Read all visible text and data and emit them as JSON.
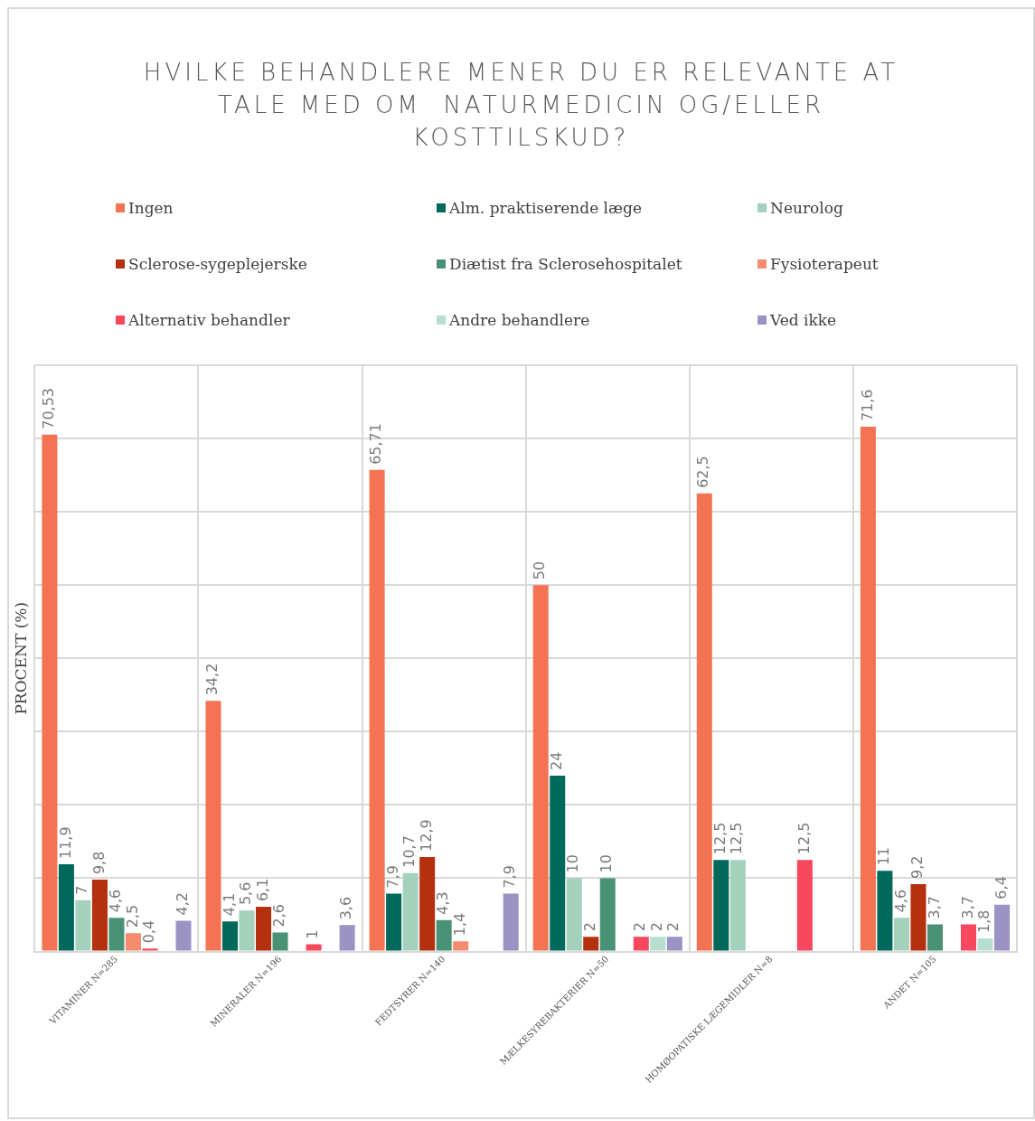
{
  "chart_data": {
    "type": "bar",
    "title": "HVILKE BEHANDLERE MENER DU ER RELEVANTE AT TALE MED OM  NATURMEDICIN OG/ELLER KOSTTILSKUD?",
    "ylabel": "PROCENT (%)",
    "categories": [
      "VITAMINER N=285",
      "MINERALER N=196",
      "FEDTSYRER N=140",
      "MÆLKESYREBAKTERIER N=50",
      "HOMØOPATISKE LÆGEMIDLER N=8",
      "ANDET N=105"
    ],
    "series": [
      {
        "name": "Ingen",
        "color": "#f47352",
        "values": [
          70.53,
          34.2,
          65.71,
          50,
          62.5,
          71.6
        ],
        "value_labels": [
          "70,53",
          "34,2",
          "65,71",
          "50",
          "62,5",
          "71,6"
        ]
      },
      {
        "name": "Alm. praktiserende læge",
        "color": "#00695c",
        "values": [
          11.9,
          4.1,
          7.9,
          24,
          12.5,
          11
        ],
        "value_labels": [
          "11,9",
          "4,1",
          "7,9",
          "24",
          "12,5",
          "11"
        ]
      },
      {
        "name": "Neurolog",
        "color": "#a3d1bc",
        "values": [
          7,
          5.6,
          10.7,
          10,
          12.5,
          4.6
        ],
        "value_labels": [
          "7",
          "5,6",
          "10,7",
          "10",
          "12,5",
          "4,6"
        ]
      },
      {
        "name": "Sclerose-sygeplejerske",
        "color": "#b5300f",
        "values": [
          9.8,
          6.1,
          12.9,
          2,
          null,
          9.2
        ],
        "value_labels": [
          "9,8",
          "6,1",
          "12,9",
          "2",
          null,
          "9,2"
        ]
      },
      {
        "name": "Diætist fra Sclerosehospitalet",
        "color": "#4a9275",
        "values": [
          4.6,
          2.6,
          4.3,
          10,
          null,
          3.7
        ],
        "value_labels": [
          "4,6",
          "2,6",
          "4,3",
          "10",
          null,
          "3,7"
        ]
      },
      {
        "name": "Fysioterapeut",
        "color": "#f68b6d",
        "values": [
          2.5,
          null,
          1.4,
          null,
          null,
          null
        ],
        "value_labels": [
          "2,5",
          null,
          "1,4",
          null,
          null,
          null
        ]
      },
      {
        "name": "Alternativ behandler",
        "color": "#f9475e",
        "values": [
          0.4,
          1,
          null,
          2,
          12.5,
          3.7
        ],
        "value_labels": [
          "0,4",
          "1",
          null,
          "2",
          "12,5",
          "3,7"
        ]
      },
      {
        "name": "Andre behandlere",
        "color": "#b7dfcf",
        "values": [
          null,
          null,
          null,
          2,
          null,
          1.8
        ],
        "value_labels": [
          null,
          null,
          null,
          "2",
          null,
          "1,8"
        ]
      },
      {
        "name": "Ved ikke",
        "color": "#9a93c3",
        "values": [
          4.2,
          3.6,
          7.9,
          2,
          null,
          6.4
        ],
        "value_labels": [
          "4,2",
          "3,6",
          "7,9",
          "2",
          null,
          "6,4"
        ]
      }
    ],
    "ylim": [
      0,
      80
    ],
    "yticks": [
      {
        "value": 0,
        "label": null
      },
      {
        "value": 10,
        "label": null
      },
      {
        "value": 20,
        "label": null
      },
      {
        "value": 30,
        "label": null
      },
      {
        "value": 40,
        "label": null
      },
      {
        "value": 50,
        "label": null
      },
      {
        "value": 60,
        "label": null
      },
      {
        "value": 70,
        "label": null
      },
      {
        "value": 80,
        "label": null
      }
    ],
    "tick_labels": "x",
    "grid": true,
    "legend": "top"
  }
}
